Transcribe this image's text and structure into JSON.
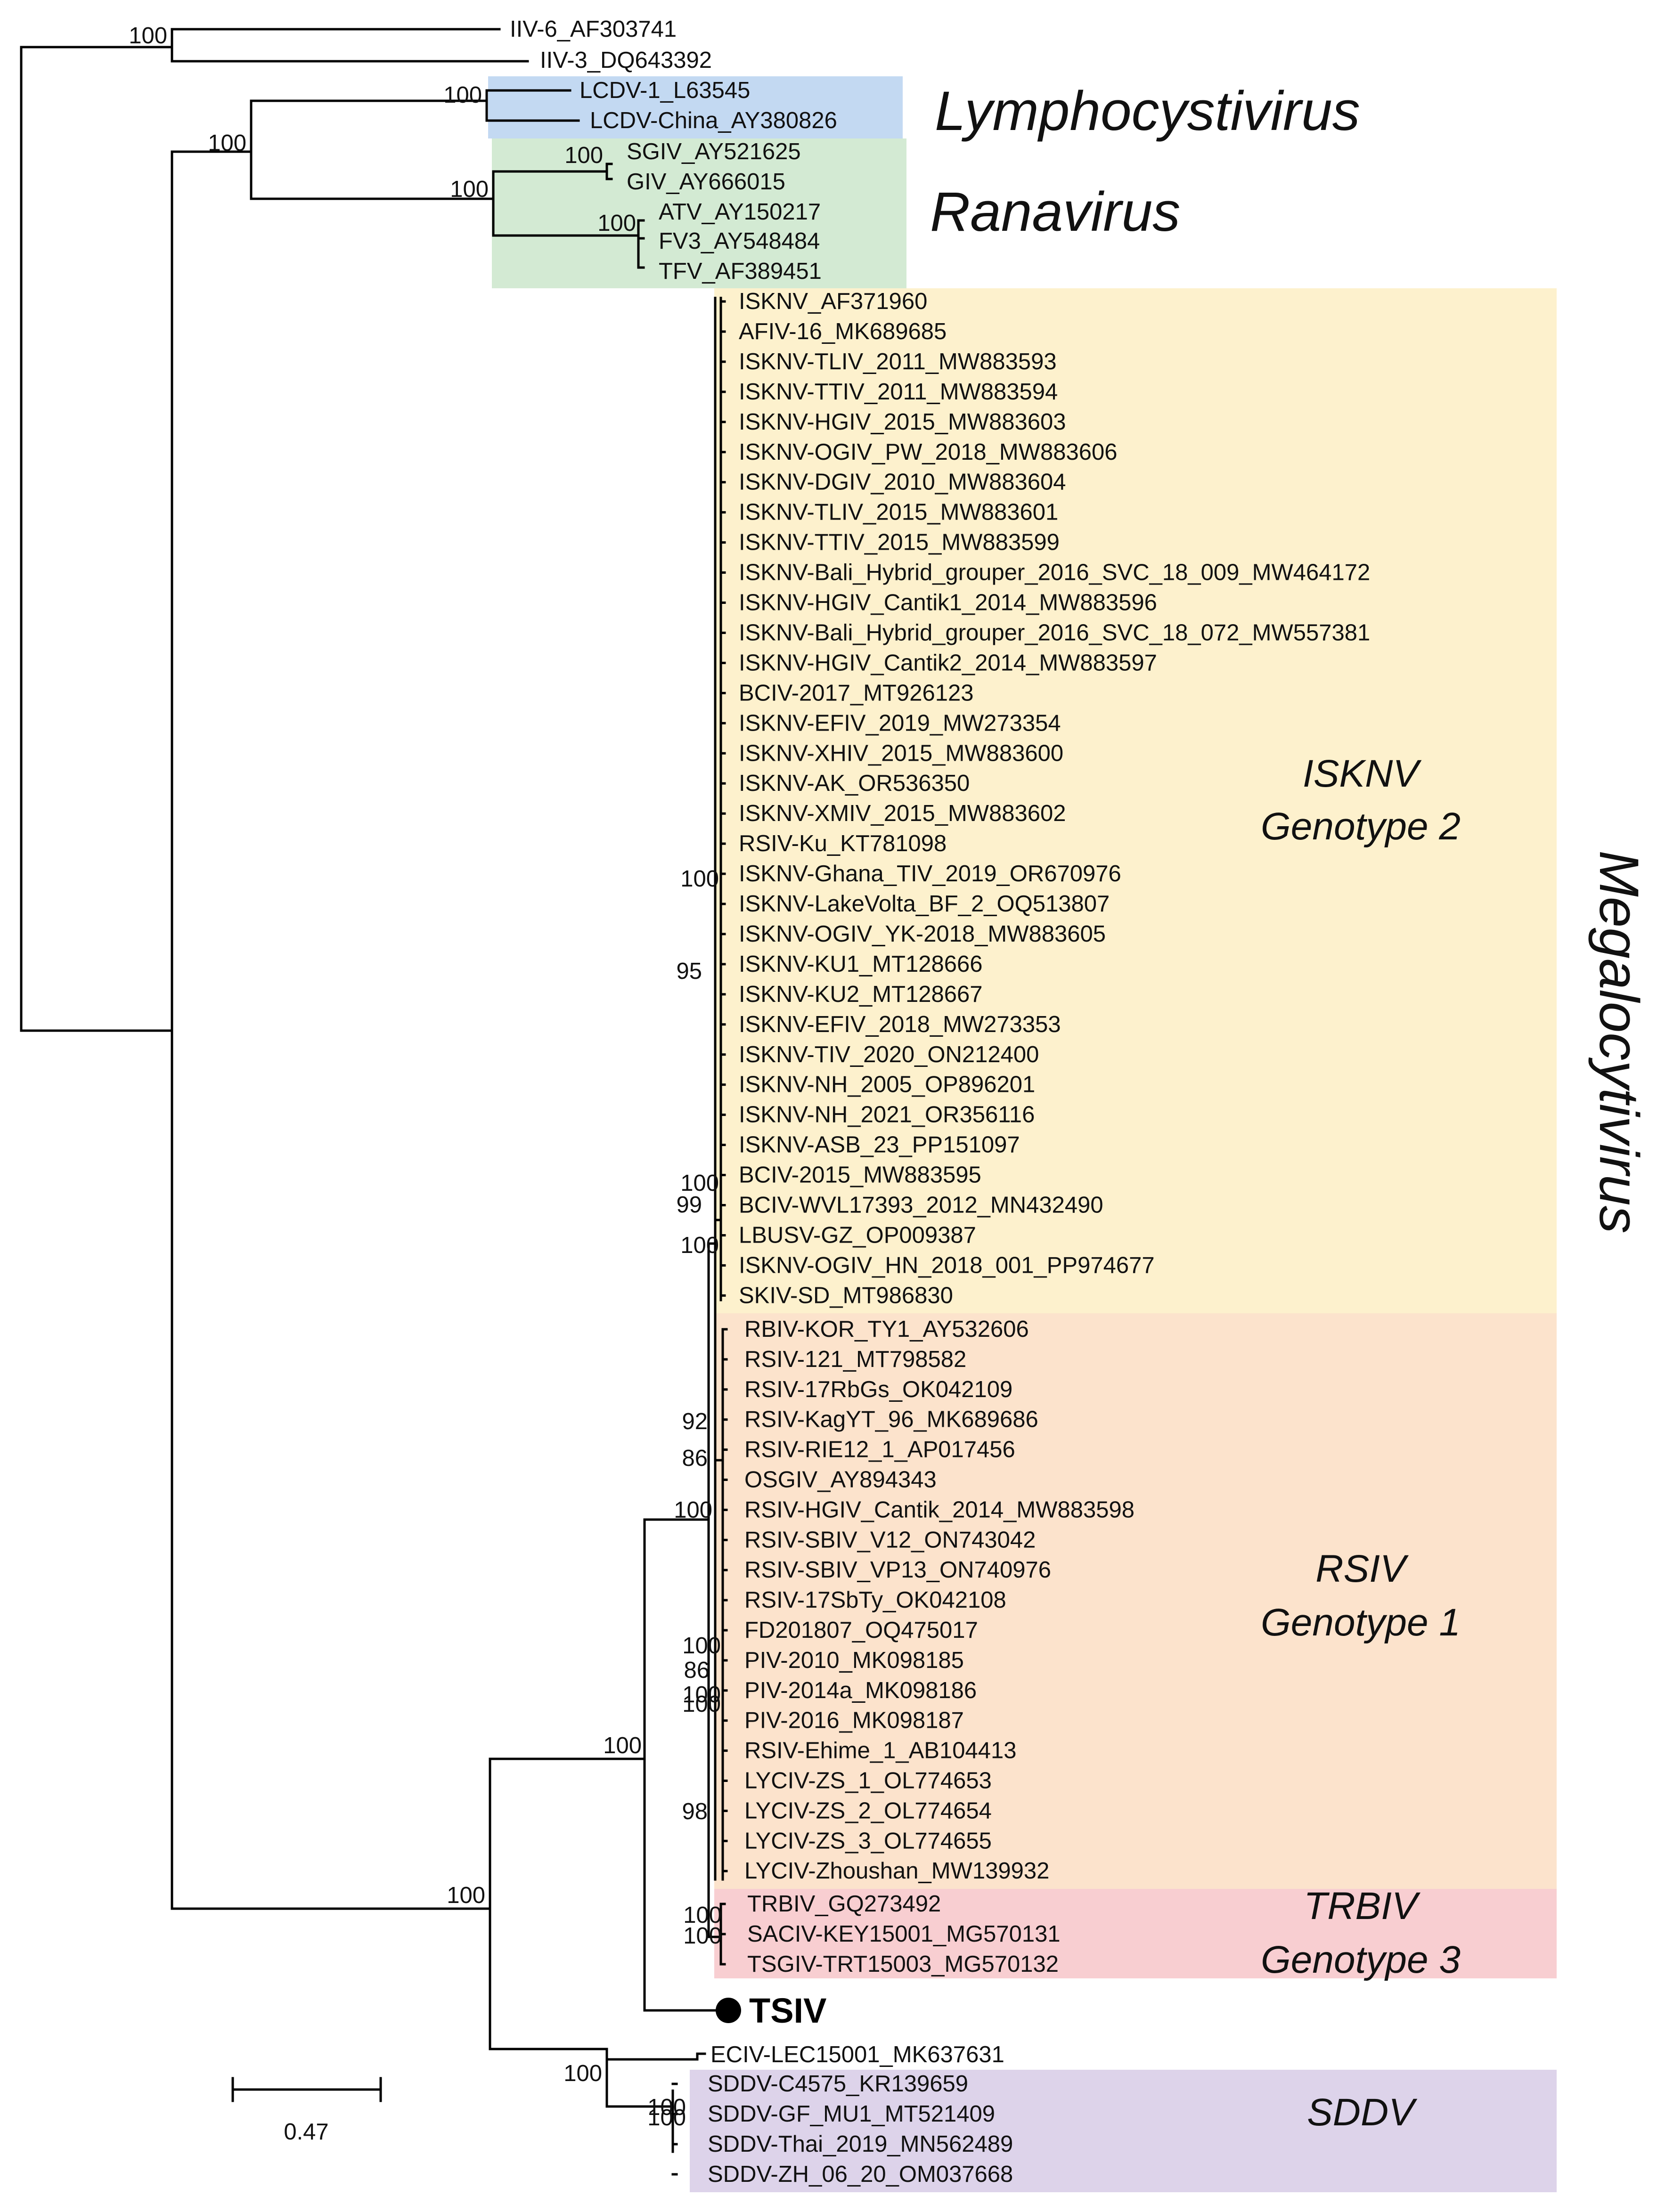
{
  "colors": {
    "lymphocystivirus": "#c3d9f2",
    "ranavirus": "#d3ead3",
    "isknv": "#fdf1cd",
    "rsiv": "#fce3cc",
    "trbiv": "#f8ced1",
    "sddv": "#ddd3ea",
    "branch": "#000000"
  },
  "taxa": {
    "iiv6": "IIV-6_AF303741",
    "iiv3": "IIV-3_DQ643392",
    "lcdv1": "LCDV-1_L63545",
    "lcdvc": "LCDV-China_AY380826",
    "sgiv": "SGIV_AY521625",
    "giv": "GIV_AY666015",
    "atv": "ATV_AY150217",
    "fv3": "FV3_AY548484",
    "tfv": "TFV_AF389451",
    "isknv": [
      "ISKNV_AF371960",
      "AFIV-16_MK689685",
      "ISKNV-TLIV_2011_MW883593",
      "ISKNV-TTIV_2011_MW883594",
      "ISKNV-HGIV_2015_MW883603",
      "ISKNV-OGIV_PW_2018_MW883606",
      "ISKNV-DGIV_2010_MW883604",
      "ISKNV-TLIV_2015_MW883601",
      "ISKNV-TTIV_2015_MW883599",
      "ISKNV-Bali_Hybrid_grouper_2016_SVC_18_009_MW464172",
      "ISKNV-HGIV_Cantik1_2014_MW883596",
      "ISKNV-Bali_Hybrid_grouper_2016_SVC_18_072_MW557381",
      "ISKNV-HGIV_Cantik2_2014_MW883597",
      "BCIV-2017_MT926123",
      "ISKNV-EFIV_2019_MW273354",
      "ISKNV-XHIV_2015_MW883600",
      "ISKNV-AK_OR536350",
      "ISKNV-XMIV_2015_MW883602",
      "RSIV-Ku_KT781098",
      "ISKNV-Ghana_TIV_2019_OR670976",
      "ISKNV-LakeVolta_BF_2_OQ513807",
      "ISKNV-OGIV_YK-2018_MW883605",
      "ISKNV-KU1_MT128666",
      "ISKNV-KU2_MT128667",
      "ISKNV-EFIV_2018_MW273353",
      "ISKNV-TIV_2020_ON212400",
      "ISKNV-NH_2005_OP896201",
      "ISKNV-NH_2021_OR356116",
      "ISKNV-ASB_23_PP151097",
      "BCIV-2015_MW883595",
      "BCIV-WVL17393_2012_MN432490",
      "LBUSV-GZ_OP009387",
      "ISKNV-OGIV_HN_2018_001_PP974677",
      "SKIV-SD_MT986830"
    ],
    "rsiv": [
      "RBIV-KOR_TY1_AY532606",
      "RSIV-121_MT798582",
      "RSIV-17RbGs_OK042109",
      "RSIV-KagYT_96_MK689686",
      "RSIV-RIE12_1_AP017456",
      "OSGIV_AY894343",
      "RSIV-HGIV_Cantik_2014_MW883598",
      "RSIV-SBIV_V12_ON743042",
      "RSIV-SBIV_VP13_ON740976",
      "RSIV-17SbTy_OK042108",
      "FD201807_OQ475017",
      "PIV-2010_MK098185",
      "PIV-2014a_MK098186",
      "PIV-2016_MK098187",
      "RSIV-Ehime_1_AB104413",
      "LYCIV-ZS_1_OL774653",
      "LYCIV-ZS_2_OL774654",
      "LYCIV-ZS_3_OL774655",
      "LYCIV-Zhoushan_MW139932"
    ],
    "trbiv": [
      "TRBIV_GQ273492",
      "SACIV-KEY15001_MG570131",
      "TSGIV-TRT15003_MG570132"
    ],
    "tsiv": "TSIV",
    "eciv": "ECIV-LEC15001_MK637631",
    "sddv": [
      "SDDV-C4575_KR139659",
      "SDDV-GF_MU1_MT521409",
      "SDDV-Thai_2019_MN562489",
      "SDDV-ZH_06_20_OM037668"
    ]
  },
  "clades": {
    "lymphocystivirus": "Lymphocystivirus",
    "ranavirus": "Ranavirus",
    "megalocytivirus": "Megalocytivirus",
    "isknv_name": "ISKNV",
    "isknv_genotype": "Genotype 2",
    "rsiv_name": "RSIV",
    "rsiv_genotype": "Genotype 1",
    "trbiv_name": "TRBIV",
    "trbiv_genotype": "Genotype 3",
    "sddv_name": "SDDV"
  },
  "bootstrap": {
    "iiv": "100",
    "lcdv": "100",
    "lcdv_rana": "100",
    "rana": "100",
    "sgiv_giv": "100",
    "atv_group": "100",
    "isknv_a": "100",
    "isknv_b": "95",
    "isknv_c": "100",
    "isknv_d": "99",
    "isknv_e": "100",
    "rsiv_a": "92",
    "rsiv_b": "86",
    "rsiv_c": "100",
    "rsiv_d": "100",
    "rsiv_e": "86",
    "rsiv_f": "100",
    "rsiv_g": "100",
    "rsiv_h": "98",
    "genotypes": "100",
    "trbiv_a": "100",
    "trbiv_b": "100",
    "mega_root": "100",
    "sddv_eciv": "100",
    "sddv_a": "100",
    "sddv_b": "100"
  },
  "scale_bar": {
    "value": "0.47"
  }
}
